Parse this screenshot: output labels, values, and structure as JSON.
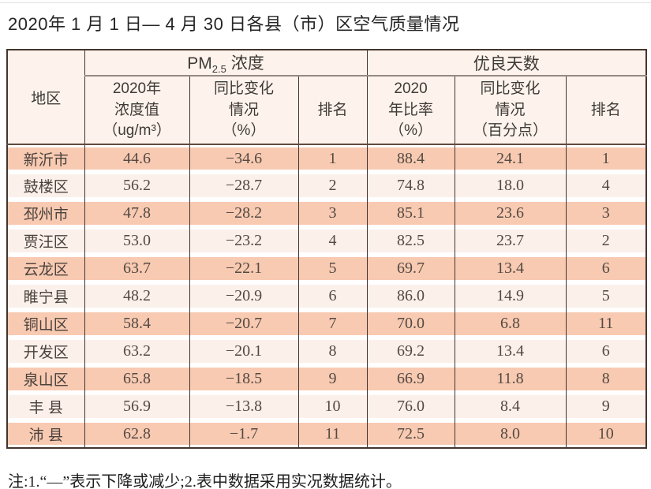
{
  "title": "2020年 1 月 1 日— 4 月 30 日各县（市）区空气质量情况",
  "table": {
    "region_header": "地区",
    "pm_group": {
      "prefix": "PM",
      "sub": "2.5",
      "suffix": " 浓度"
    },
    "good_group": "优良天数",
    "sub_headers": [
      "2020年\n浓度值\n（ug/m³）",
      "同比变化\n情况\n（%）",
      "排名",
      "2020\n年比率\n（%）",
      "同比变化\n情况\n（百分点）",
      "排名"
    ],
    "rows": [
      [
        "新沂市",
        "44.6",
        "−34.6",
        "1",
        "88.4",
        "24.1",
        "1"
      ],
      [
        "鼓楼区",
        "56.2",
        "−28.7",
        "2",
        "74.8",
        "18.0",
        "4"
      ],
      [
        "邳州市",
        "47.8",
        "−28.2",
        "3",
        "85.1",
        "23.6",
        "3"
      ],
      [
        "贾汪区",
        "53.0",
        "−23.2",
        "4",
        "82.5",
        "23.7",
        "2"
      ],
      [
        "云龙区",
        "63.7",
        "−22.1",
        "5",
        "69.7",
        "13.4",
        "6"
      ],
      [
        "睢宁县",
        "48.2",
        "−20.9",
        "6",
        "86.0",
        "14.9",
        "5"
      ],
      [
        "铜山区",
        "58.4",
        "−20.7",
        "7",
        "70.0",
        "6.8",
        "11"
      ],
      [
        "开发区",
        "63.2",
        "−20.1",
        "8",
        "69.2",
        "13.4",
        "6"
      ],
      [
        "泉山区",
        "65.8",
        "−18.5",
        "9",
        "66.9",
        "11.8",
        "8"
      ],
      [
        "丰 县",
        "56.9",
        "−13.8",
        "10",
        "76.0",
        "8.4",
        "9"
      ],
      [
        "沛 县",
        "62.8",
        "−1.7",
        "11",
        "72.5",
        "8.0",
        "10"
      ]
    ]
  },
  "footnote": "注:1.“—”表示下降或减少;2.表中数据采用实况数据统计。",
  "colors": {
    "stripe": "#f8cab2",
    "stripe_light": "#fcf0eb",
    "header_bg": "#fdf3ec",
    "border_dark": "#43352e",
    "header_divider": "#938a83",
    "header_line": "#5f4a3e"
  }
}
